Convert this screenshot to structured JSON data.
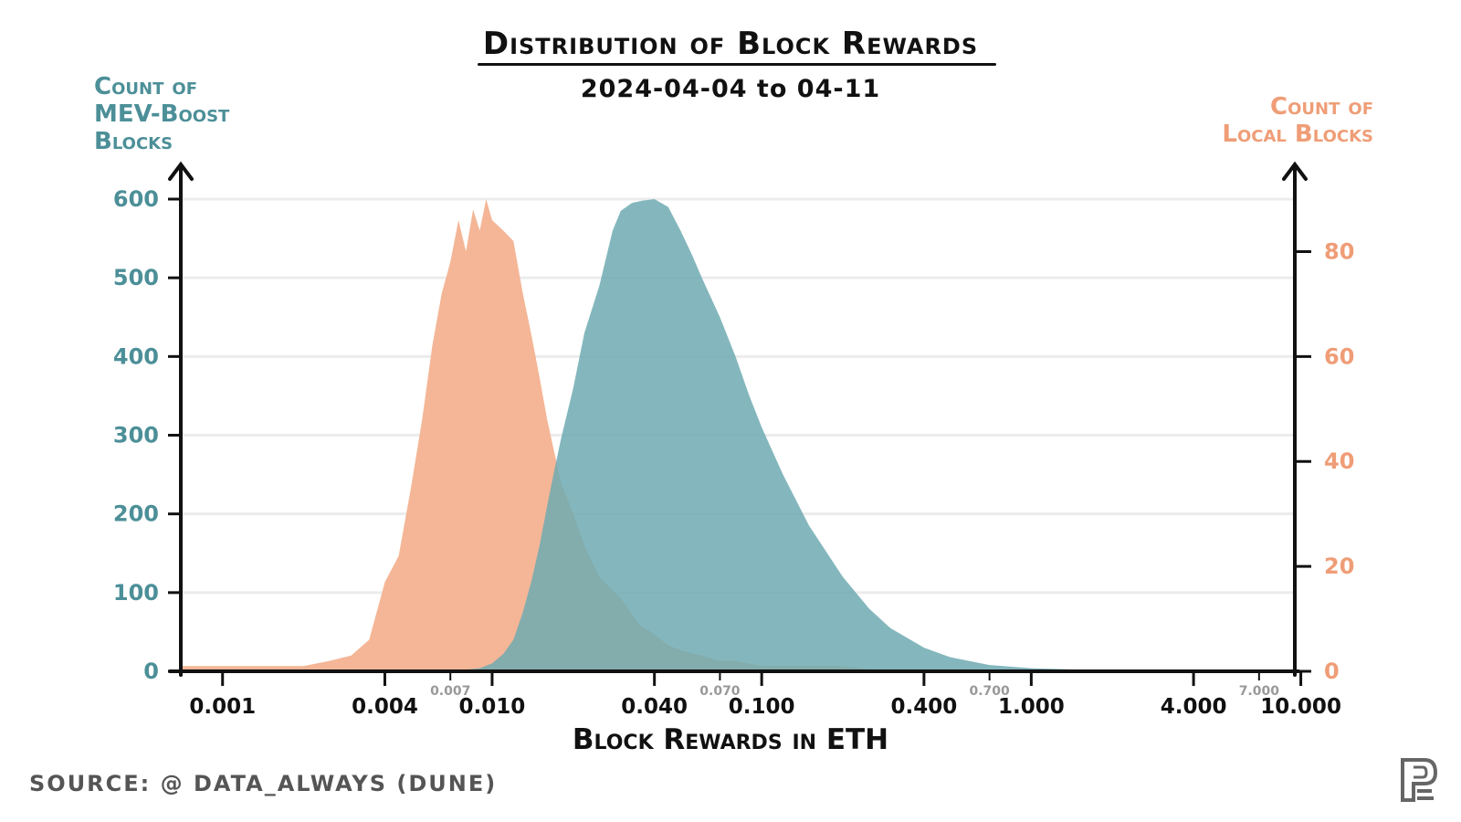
{
  "title": "Distribution of Block Rewards",
  "subtitle": "2024-04-04 to 04-11",
  "source": "SOURCE: @ DATA_ALWAYS (DUNE)",
  "colors": {
    "mev": "#6faab1",
    "local": "#f4b696",
    "overlap": "#7f9f9c",
    "mev_text": "#4c8f98",
    "local_text": "#ef9d77",
    "grid": "#ececec"
  },
  "chart_data": {
    "type": "area",
    "title": "Distribution of Block Rewards",
    "subtitle": "2024-04-04 to 04-11",
    "xlabel": "Block Rewards in ETH",
    "xscale": "log",
    "xlim": [
      0.0007,
      9.5
    ],
    "y_left": {
      "label_lines": [
        "Count of",
        "MEV-Boost",
        "Blocks"
      ],
      "ticks": [
        0,
        100,
        200,
        300,
        400,
        500,
        600
      ],
      "ylim": [
        0,
        600
      ]
    },
    "y_right": {
      "label_lines": [
        "Count of",
        "Local Blocks"
      ],
      "ticks": [
        0,
        20,
        40,
        60,
        80
      ],
      "ylim": [
        0,
        90
      ]
    },
    "x_major_ticks": [
      {
        "value": 0.001,
        "label": "0.001"
      },
      {
        "value": 0.004,
        "label": "0.004"
      },
      {
        "value": 0.01,
        "label": "0.010"
      },
      {
        "value": 0.04,
        "label": "0.040"
      },
      {
        "value": 0.1,
        "label": "0.100"
      },
      {
        "value": 0.4,
        "label": "0.400"
      },
      {
        "value": 1,
        "label": "1.000"
      },
      {
        "value": 4,
        "label": "4.000"
      },
      {
        "value": 10,
        "label": "10.000"
      }
    ],
    "x_minor_ticks": [
      {
        "value": 0.007,
        "label": "0.007"
      },
      {
        "value": 0.07,
        "label": "0.070"
      },
      {
        "value": 0.7,
        "label": "0.700"
      },
      {
        "value": 7,
        "label": "7.000"
      }
    ],
    "series": [
      {
        "name": "Local blocks",
        "axis": "right",
        "x": [
          0.0007,
          0.002,
          0.0025,
          0.003,
          0.0035,
          0.004,
          0.0045,
          0.005,
          0.0055,
          0.006,
          0.0065,
          0.007,
          0.0075,
          0.008,
          0.0085,
          0.009,
          0.0095,
          0.01,
          0.011,
          0.012,
          0.013,
          0.014,
          0.015,
          0.016,
          0.018,
          0.02,
          0.022,
          0.025,
          0.03,
          0.035,
          0.04,
          0.045,
          0.05,
          0.06,
          0.07,
          0.08,
          0.1,
          0.15,
          0.2,
          0.3
        ],
        "values": [
          1,
          1,
          2,
          3,
          6,
          17,
          22,
          35,
          48,
          62,
          72,
          78,
          86,
          80,
          88,
          84,
          90,
          86,
          84,
          82,
          72,
          64,
          56,
          48,
          36,
          30,
          24,
          18,
          14,
          9,
          7,
          5,
          4,
          3,
          2,
          2,
          1,
          1,
          1,
          0
        ]
      },
      {
        "name": "MEV-Boost blocks",
        "axis": "left",
        "x": [
          0.0007,
          0.007,
          0.009,
          0.01,
          0.011,
          0.012,
          0.013,
          0.014,
          0.015,
          0.016,
          0.017,
          0.018,
          0.02,
          0.022,
          0.025,
          0.028,
          0.03,
          0.033,
          0.036,
          0.04,
          0.045,
          0.05,
          0.055,
          0.06,
          0.07,
          0.08,
          0.09,
          0.1,
          0.12,
          0.15,
          0.2,
          0.25,
          0.3,
          0.4,
          0.5,
          0.7,
          1.0,
          1.5,
          2.0,
          3.0,
          5.0,
          7.0,
          9.5
        ],
        "values": [
          0,
          0,
          4,
          10,
          22,
          40,
          75,
          115,
          160,
          210,
          255,
          295,
          360,
          430,
          490,
          560,
          585,
          595,
          598,
          600,
          590,
          560,
          530,
          500,
          450,
          400,
          350,
          310,
          250,
          185,
          120,
          80,
          55,
          30,
          18,
          8,
          4,
          2,
          1,
          1,
          0,
          0,
          0
        ]
      }
    ]
  }
}
